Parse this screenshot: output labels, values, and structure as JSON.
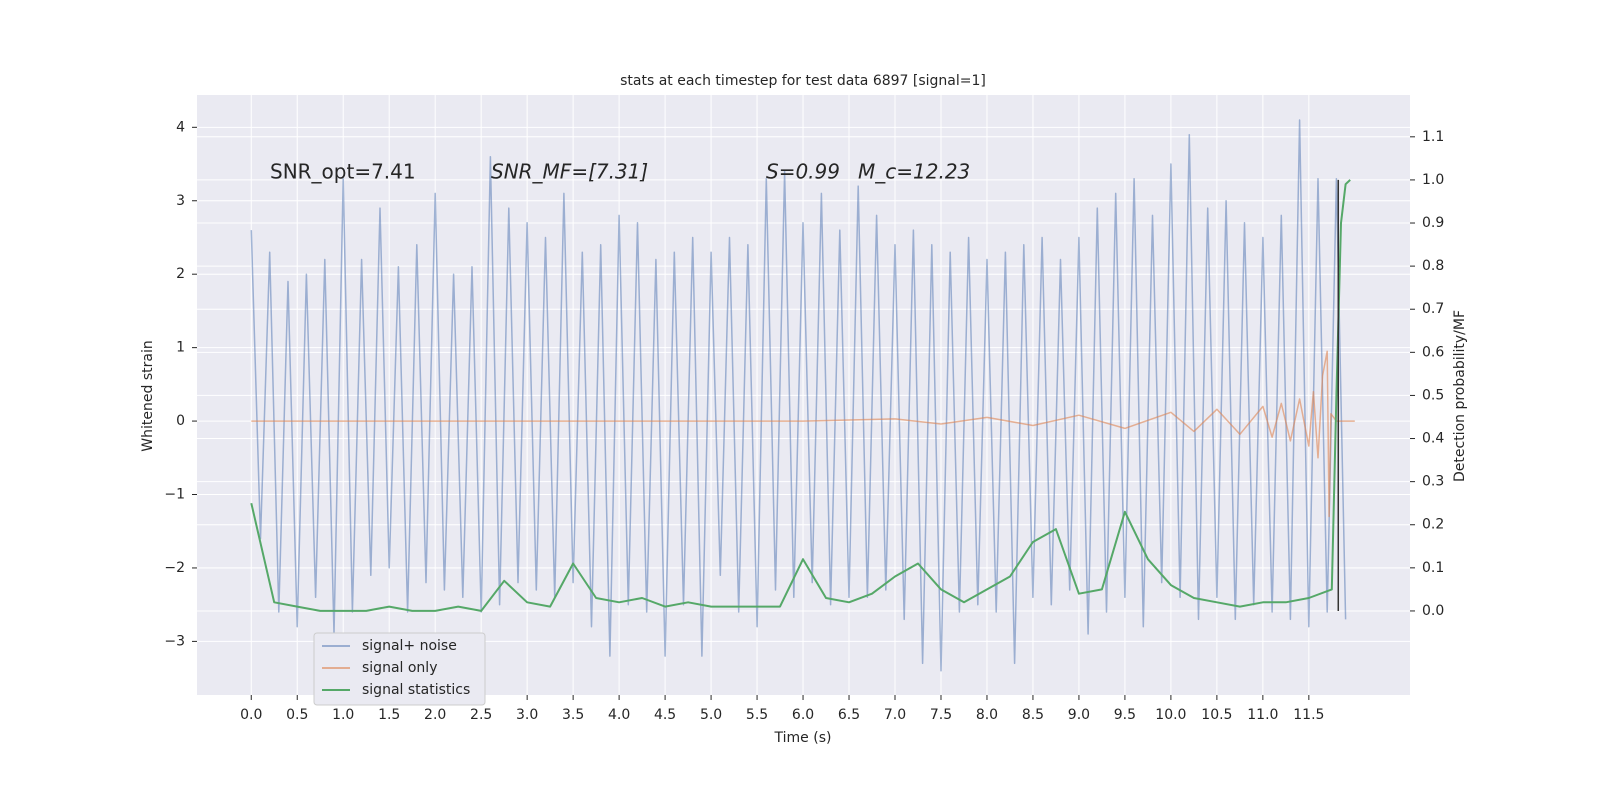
{
  "chart_data": {
    "type": "line",
    "title": "stats at each timestep for test data 6897 [signal=1]",
    "xlabel": "Time (s)",
    "ylabel": "Whitened strain",
    "y2label": "Detection probability/MF",
    "annotations": [
      "SNR_opt=7.41",
      "SNR_MF=[7.31]",
      "S=0.99",
      "M_c=12.23"
    ],
    "xlim": [
      -0.59,
      12.6
    ],
    "ylim": [
      -3.73,
      4.44
    ],
    "y2lim": [
      -0.195,
      1.197
    ],
    "xticks": [
      {
        "value": 0,
        "label": "0.0"
      },
      0.5,
      {
        "value": 1,
        "label": "1.0"
      },
      1.5,
      {
        "value": 2,
        "label": "2.0"
      },
      2.5,
      {
        "value": 3,
        "label": "3.0"
      },
      3.5,
      {
        "value": 4,
        "label": "4.0"
      },
      4.5,
      {
        "value": 5,
        "label": "5.0"
      },
      5.5,
      {
        "value": 6,
        "label": "6.0"
      },
      6.5,
      {
        "value": 7,
        "label": "7.0"
      },
      7.5,
      {
        "value": 8,
        "label": "8.0"
      },
      8.5,
      {
        "value": 9,
        "label": "9.0"
      },
      9.5,
      {
        "value": 10,
        "label": "10.0"
      },
      10.5,
      {
        "value": 11,
        "label": "11.0"
      },
      11.5
    ],
    "yticks": [
      {
        "value": -3,
        "label": "−3"
      },
      {
        "value": -2,
        "label": "−2"
      },
      {
        "value": -1,
        "label": "−1"
      },
      0,
      1,
      2,
      3,
      4
    ],
    "y2ticks": [
      {
        "value": 0,
        "label": "0.0"
      },
      0.1,
      0.2,
      0.3,
      0.4,
      0.5,
      0.6,
      0.7,
      0.8,
      0.9,
      {
        "value": 1,
        "label": "1.0"
      },
      1.1
    ],
    "grid": true,
    "background": "#eaeaf2",
    "legend": "lower left",
    "vline": {
      "x": 11.82,
      "color": "#333333"
    },
    "series": [
      {
        "name": "signal+ noise",
        "color": "#4c72b0",
        "opacity": 0.5,
        "x": [
          0,
          0.1,
          0.2,
          0.3,
          0.4,
          0.5,
          0.6,
          0.7,
          0.8,
          0.9,
          1,
          1.1,
          1.2,
          1.3,
          1.4,
          1.5,
          1.6,
          1.7,
          1.8,
          1.9,
          2,
          2.1,
          2.2,
          2.3,
          2.4,
          2.5,
          2.6,
          2.7,
          2.8,
          2.9,
          3,
          3.1,
          3.2,
          3.3,
          3.4,
          3.5,
          3.6,
          3.7,
          3.8,
          3.9,
          4,
          4.1,
          4.2,
          4.3,
          4.4,
          4.5,
          4.6,
          4.7,
          4.8,
          4.9,
          5,
          5.1,
          5.2,
          5.3,
          5.4,
          5.5,
          5.6,
          5.7,
          5.8,
          5.9,
          6,
          6.1,
          6.2,
          6.3,
          6.4,
          6.5,
          6.6,
          6.7,
          6.8,
          6.9,
          7,
          7.1,
          7.2,
          7.3,
          7.4,
          7.5,
          7.6,
          7.7,
          7.8,
          7.9,
          8,
          8.1,
          8.2,
          8.3,
          8.4,
          8.5,
          8.6,
          8.7,
          8.8,
          8.9,
          9,
          9.1,
          9.2,
          9.3,
          9.4,
          9.5,
          9.6,
          9.7,
          9.8,
          9.9,
          10,
          10.1,
          10.2,
          10.3,
          10.4,
          10.5,
          10.6,
          10.7,
          10.8,
          10.9,
          11,
          11.1,
          11.2,
          11.3,
          11.4,
          11.5,
          11.6,
          11.7,
          11.8,
          11.9
        ],
        "values": [
          2.6,
          -1.6,
          2.3,
          -2.6,
          1.9,
          -2.8,
          2.0,
          -2.4,
          2.2,
          -2.9,
          3.3,
          -2.6,
          2.2,
          -2.1,
          2.9,
          -2.0,
          2.1,
          -2.6,
          2.4,
          -2.2,
          3.1,
          -2.3,
          2.0,
          -2.4,
          2.1,
          -2.6,
          3.6,
          -2.5,
          2.9,
          -2.2,
          2.7,
          -2.3,
          2.5,
          -2.4,
          3.1,
          -2.2,
          2.3,
          -2.8,
          2.4,
          -3.2,
          2.8,
          -2.5,
          2.7,
          -2.6,
          2.2,
          -3.2,
          2.3,
          -2.5,
          2.5,
          -3.2,
          2.3,
          -2.1,
          2.5,
          -2.6,
          2.4,
          -2.8,
          3.3,
          -2.3,
          3.4,
          -2.4,
          2.7,
          -2.2,
          3.1,
          -2.5,
          2.6,
          -2.4,
          3.2,
          -2.4,
          2.8,
          -2.3,
          2.4,
          -2.7,
          2.6,
          -3.3,
          2.4,
          -3.4,
          2.3,
          -2.6,
          2.5,
          -2.5,
          2.2,
          -2.6,
          2.3,
          -3.3,
          2.4,
          -2.4,
          2.5,
          -2.5,
          2.2,
          -2.3,
          2.5,
          -2.9,
          2.9,
          -2.6,
          3.1,
          -2.4,
          3.3,
          -2.8,
          2.8,
          -2.2,
          3.5,
          -2.4,
          3.9,
          -2.7,
          2.9,
          -2.4,
          3.0,
          -2.7,
          2.7,
          -2.5,
          2.5,
          -2.6,
          2.8,
          -2.7,
          4.1,
          -2.8,
          3.3,
          -2.6,
          3.3,
          -2.7
        ]
      },
      {
        "name": "signal only",
        "color": "#dd8452",
        "opacity": 0.6,
        "x": [
          0,
          1,
          2,
          3,
          4,
          5,
          6,
          7,
          7.5,
          8,
          8.5,
          9,
          9.5,
          10,
          10.25,
          10.5,
          10.75,
          11,
          11.1,
          11.2,
          11.3,
          11.4,
          11.5,
          11.55,
          11.6,
          11.65,
          11.7,
          11.72,
          11.74,
          11.8,
          12
        ],
        "values": [
          0,
          0,
          0,
          0,
          0,
          0,
          0,
          0.03,
          -0.04,
          0.05,
          -0.06,
          0.08,
          -0.1,
          0.12,
          -0.14,
          0.16,
          -0.18,
          0.2,
          -0.22,
          0.24,
          -0.27,
          0.3,
          -0.34,
          0.4,
          -0.5,
          0.62,
          0.95,
          -1.3,
          0.1,
          0,
          0
        ]
      },
      {
        "name": "signal statistics",
        "color": "#55a868",
        "opacity": 1,
        "axis": "y2",
        "x": [
          0,
          0.25,
          0.5,
          0.75,
          1,
          1.25,
          1.5,
          1.75,
          2,
          2.25,
          2.5,
          2.75,
          3,
          3.25,
          3.5,
          3.75,
          4,
          4.25,
          4.5,
          4.75,
          5,
          5.25,
          5.5,
          5.75,
          6,
          6.25,
          6.5,
          6.75,
          7,
          7.25,
          7.5,
          7.75,
          8,
          8.25,
          8.5,
          8.75,
          9,
          9.25,
          9.5,
          9.75,
          10,
          10.25,
          10.5,
          10.75,
          11,
          11.25,
          11.5,
          11.75,
          11.8,
          11.85,
          11.9,
          11.95
        ],
        "values": [
          0.25,
          0.02,
          0.01,
          0,
          0,
          0,
          0.01,
          0,
          0,
          0.01,
          0,
          0.07,
          0.02,
          0.01,
          0.11,
          0.03,
          0.02,
          0.03,
          0.01,
          0.02,
          0.01,
          0.01,
          0.01,
          0.01,
          0.12,
          0.03,
          0.02,
          0.04,
          0.08,
          0.11,
          0.05,
          0.02,
          0.05,
          0.08,
          0.16,
          0.19,
          0.04,
          0.05,
          0.23,
          0.12,
          0.06,
          0.03,
          0.02,
          0.01,
          0.02,
          0.02,
          0.03,
          0.05,
          0.5,
          0.9,
          0.99,
          1.0
        ]
      }
    ]
  }
}
